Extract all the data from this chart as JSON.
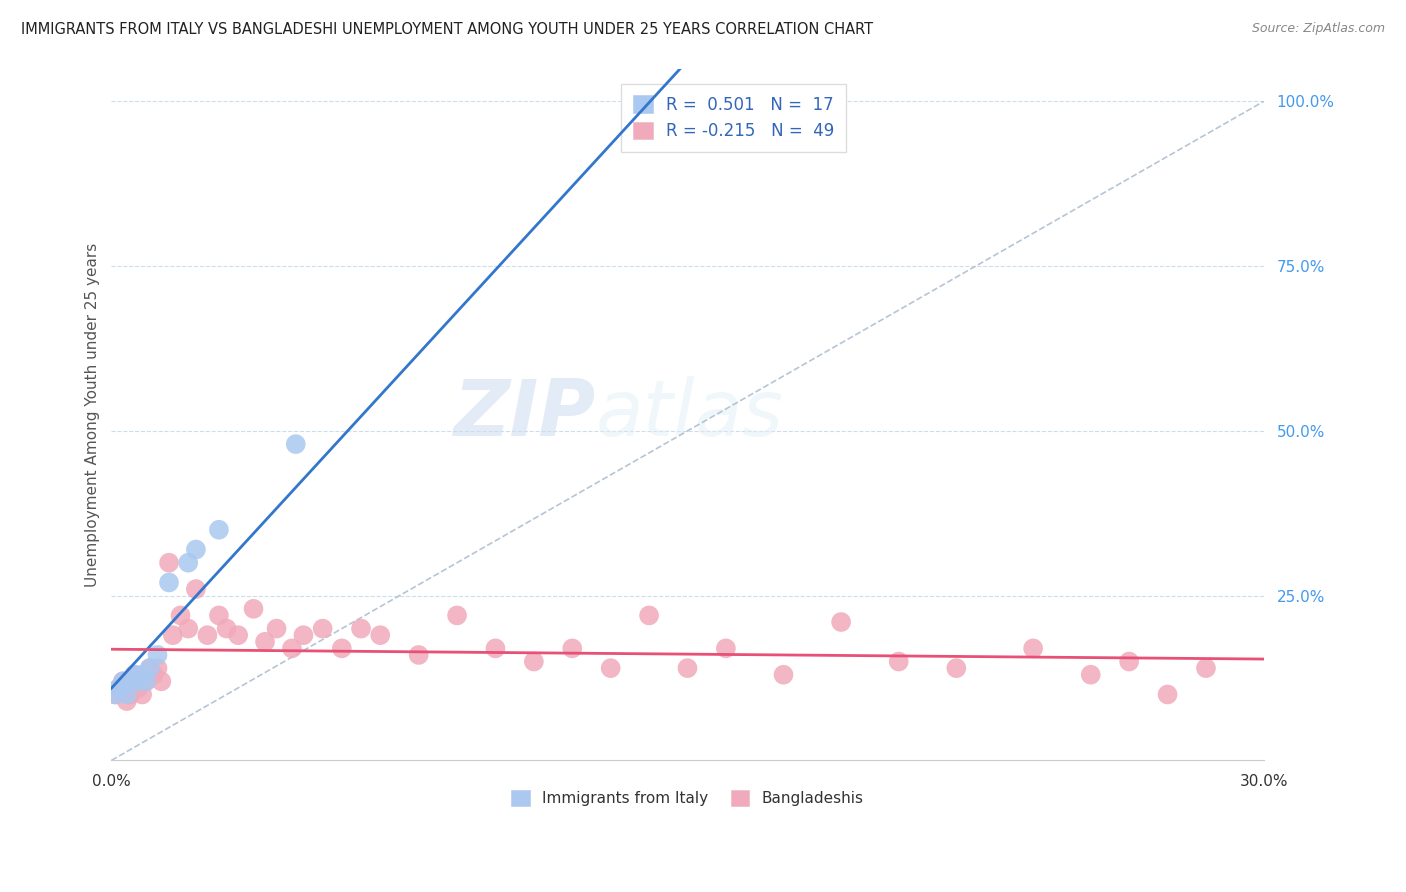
{
  "title": "IMMIGRANTS FROM ITALY VS BANGLADESHI UNEMPLOYMENT AMONG YOUTH UNDER 25 YEARS CORRELATION CHART",
  "source": "Source: ZipAtlas.com",
  "ylabel": "Unemployment Among Youth under 25 years",
  "legend_label1": "Immigrants from Italy",
  "legend_label2": "Bangladeshis",
  "R1": 0.501,
  "N1": 17,
  "R2": -0.215,
  "N2": 49,
  "blue_color": "#aac8f0",
  "pink_color": "#f0aabb",
  "blue_line_color": "#3377cc",
  "pink_line_color": "#e85075",
  "dash_line_color": "#aabbcc",
  "watermark_zip": "ZIP",
  "watermark_atlas": "atlas",
  "xmin": 0.0,
  "xmax": 0.3,
  "ymin": 0.0,
  "ymax": 1.05,
  "italy_x": [
    0.001,
    0.002,
    0.003,
    0.004,
    0.005,
    0.006,
    0.007,
    0.008,
    0.009,
    0.01,
    0.012,
    0.015,
    0.02,
    0.022,
    0.028,
    0.048,
    0.14
  ],
  "italy_y": [
    0.1,
    0.11,
    0.12,
    0.1,
    0.12,
    0.13,
    0.12,
    0.13,
    0.12,
    0.14,
    0.16,
    0.27,
    0.3,
    0.32,
    0.35,
    0.48,
    0.95
  ],
  "bangla_x": [
    0.001,
    0.002,
    0.003,
    0.004,
    0.005,
    0.006,
    0.007,
    0.008,
    0.009,
    0.01,
    0.011,
    0.012,
    0.013,
    0.015,
    0.016,
    0.018,
    0.02,
    0.022,
    0.025,
    0.028,
    0.03,
    0.033,
    0.037,
    0.04,
    0.043,
    0.047,
    0.05,
    0.055,
    0.06,
    0.065,
    0.07,
    0.08,
    0.09,
    0.1,
    0.11,
    0.12,
    0.13,
    0.14,
    0.15,
    0.16,
    0.175,
    0.19,
    0.205,
    0.22,
    0.24,
    0.255,
    0.265,
    0.275,
    0.285
  ],
  "bangla_y": [
    0.1,
    0.11,
    0.12,
    0.09,
    0.1,
    0.13,
    0.11,
    0.1,
    0.12,
    0.14,
    0.13,
    0.14,
    0.12,
    0.3,
    0.19,
    0.22,
    0.2,
    0.26,
    0.19,
    0.22,
    0.2,
    0.19,
    0.23,
    0.18,
    0.2,
    0.17,
    0.19,
    0.2,
    0.17,
    0.2,
    0.19,
    0.16,
    0.22,
    0.17,
    0.15,
    0.17,
    0.14,
    0.22,
    0.14,
    0.17,
    0.13,
    0.21,
    0.15,
    0.14,
    0.17,
    0.13,
    0.15,
    0.1,
    0.14
  ]
}
